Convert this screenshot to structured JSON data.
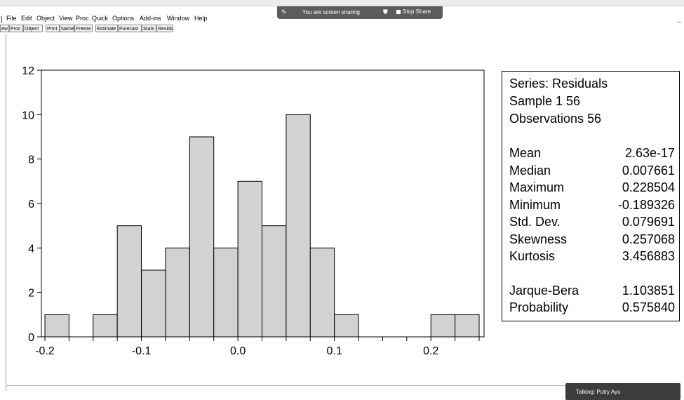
{
  "menubar": {
    "items": [
      "File",
      "Edit",
      "Object",
      "View",
      "Proc",
      "Quick",
      "Options",
      "Add-ins",
      "Window",
      "Help"
    ]
  },
  "toolbar": {
    "buttons": [
      "ew",
      "Proc",
      "Object",
      "Print",
      "Name",
      "Freeze",
      "Estimate",
      "Forecast",
      "Stats",
      "Resids"
    ]
  },
  "share_banner": {
    "message": "You are screen sharing",
    "stop_label": "Stop Share"
  },
  "toast": {
    "text": "Talking: Putry Ayu"
  },
  "stats": {
    "series": "Series: Residuals",
    "sample": "Sample 1 56",
    "observations": "Observations 56",
    "rows": [
      {
        "label": "Mean",
        "value": "2.63e-17"
      },
      {
        "label": "Median",
        "value": "0.007661"
      },
      {
        "label": "Maximum",
        "value": "0.228504"
      },
      {
        "label": "Minimum",
        "value": "-0.189326"
      },
      {
        "label": "Std. Dev.",
        "value": "0.079691"
      },
      {
        "label": "Skewness",
        "value": "0.257068"
      },
      {
        "label": "Kurtosis",
        "value": "3.456883"
      },
      {
        "label": "Jarque-Bera",
        "value": "1.103851"
      },
      {
        "label": "Probability",
        "value": "0.575840"
      }
    ]
  },
  "colors": {
    "bar_fill": "#d2d2d2",
    "bar_stroke": "#000000",
    "banner": "#5c5c5c",
    "toast": "#3c3c3c"
  },
  "chart_data": {
    "type": "bar",
    "title": "",
    "xlabel": "",
    "ylabel": "",
    "bin_width": 0.025,
    "bins": [
      {
        "start": -0.2,
        "end": -0.175,
        "count": 1
      },
      {
        "start": -0.175,
        "end": -0.15,
        "count": 0
      },
      {
        "start": -0.15,
        "end": -0.125,
        "count": 1
      },
      {
        "start": -0.125,
        "end": -0.1,
        "count": 5
      },
      {
        "start": -0.1,
        "end": -0.075,
        "count": 3
      },
      {
        "start": -0.075,
        "end": -0.05,
        "count": 4
      },
      {
        "start": -0.05,
        "end": -0.025,
        "count": 9
      },
      {
        "start": -0.025,
        "end": 0.0,
        "count": 4
      },
      {
        "start": 0.0,
        "end": 0.025,
        "count": 7
      },
      {
        "start": 0.025,
        "end": 0.05,
        "count": 5
      },
      {
        "start": 0.05,
        "end": 0.075,
        "count": 10
      },
      {
        "start": 0.075,
        "end": 0.1,
        "count": 4
      },
      {
        "start": 0.1,
        "end": 0.125,
        "count": 1
      },
      {
        "start": 0.125,
        "end": 0.15,
        "count": 0
      },
      {
        "start": 0.15,
        "end": 0.175,
        "count": 0
      },
      {
        "start": 0.175,
        "end": 0.2,
        "count": 0
      },
      {
        "start": 0.2,
        "end": 0.225,
        "count": 1
      },
      {
        "start": 0.225,
        "end": 0.25,
        "count": 1
      }
    ],
    "xlim": [
      -0.2,
      0.25
    ],
    "ylim": [
      0,
      12
    ],
    "x_ticks": [
      "-0.2",
      "-0.1",
      "0.0",
      "0.1",
      "0.2"
    ],
    "y_ticks": [
      "0",
      "2",
      "4",
      "6",
      "8",
      "10",
      "12"
    ],
    "grid": false
  }
}
